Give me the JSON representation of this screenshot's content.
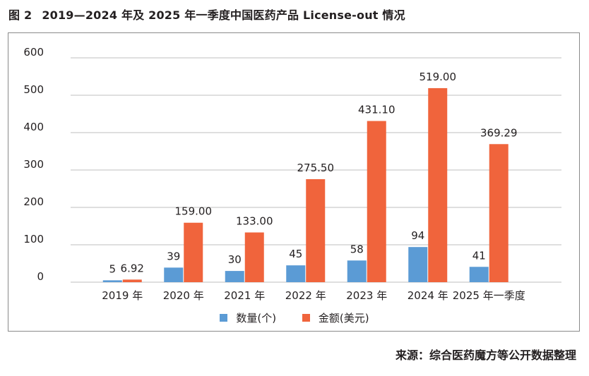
{
  "figure": {
    "number": "图 2",
    "title": "2019—2024 年及 2025 年一季度中国医药产品 License-out 情况"
  },
  "source": "来源：综合医药魔方等公开数据整理",
  "colors": {
    "count": "#5b9bd5",
    "amount": "#f0643c",
    "grid": "#bfbfbf"
  },
  "chart_data": {
    "type": "bar",
    "categories": [
      "2019 年",
      "2020 年",
      "2021 年",
      "2022 年",
      "2023 年",
      "2024 年",
      "2025 年一季度"
    ],
    "series": [
      {
        "name": "数量(个)",
        "values": [
          5,
          39,
          30,
          45,
          58,
          94,
          41
        ],
        "labels": [
          "5",
          "39",
          "30",
          "45",
          "58",
          "94",
          "41"
        ]
      },
      {
        "name": "金额(美元)",
        "values": [
          6.92,
          159.0,
          133.0,
          275.5,
          431.1,
          519.0,
          369.29
        ],
        "labels": [
          "6.92",
          "159.00",
          "133.00",
          "275.50",
          "431.10",
          "519.00",
          "369.29"
        ]
      }
    ],
    "ylim": [
      0,
      600
    ],
    "yticks": [
      0,
      100,
      200,
      300,
      400,
      500,
      600
    ],
    "grid": true,
    "legend": "bottom"
  }
}
